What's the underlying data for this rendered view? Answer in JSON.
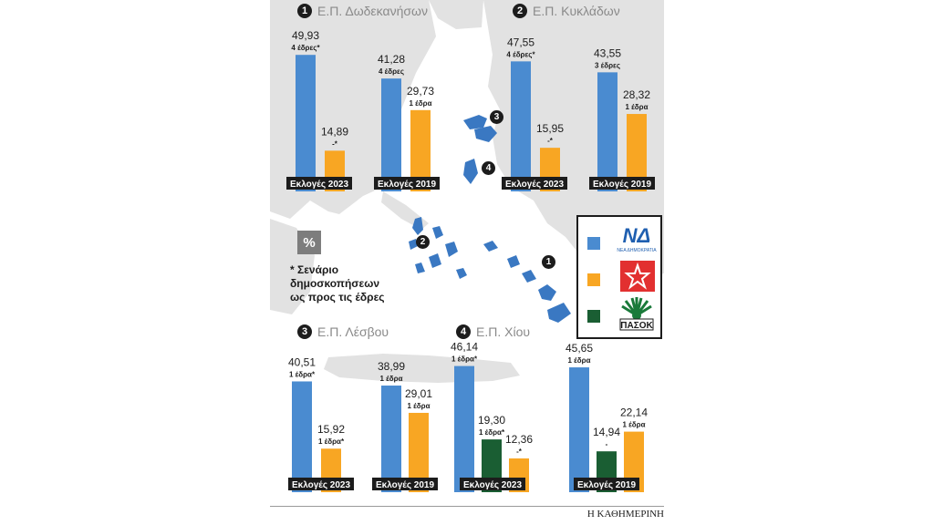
{
  "colors": {
    "nd": "#4a8bd0",
    "syriza": "#f8a623",
    "pasok": "#1a5e33",
    "map_land": "#e1e1e1",
    "islands": "#3a78c2"
  },
  "legend": {
    "nd_logo_text": "ΝΔ",
    "nd_logo_sub": "ΝΕΑ ΔΗΜΟΚΡΑΤΙΑ",
    "pasok_logo_text": "ΠΑΣΟΚ"
  },
  "percent_label": "%",
  "footnote_lines": [
    "* Σενάριο",
    "δημοσκοπήσεων",
    "ως προς τις έδρες"
  ],
  "source": "Η ΚΑΘΗΜΕΡΙΝΗ",
  "map_badges": [
    "1",
    "2",
    "3",
    "4"
  ],
  "chart_data": [
    {
      "type": "bar",
      "number": "1",
      "title": "Ε.Π. Δωδεκανήσων",
      "groups": [
        {
          "label": "Εκλογές 2023",
          "bars": [
            {
              "party": "nd",
              "value": 49.93,
              "value_text": "49,93",
              "seats": "4 έδρες*"
            },
            {
              "party": "syriza",
              "value": 14.89,
              "value_text": "14,89",
              "seats": "-*"
            }
          ]
        },
        {
          "label": "Εκλογές 2019",
          "bars": [
            {
              "party": "nd",
              "value": 41.28,
              "value_text": "41,28",
              "seats": "4 έδρες"
            },
            {
              "party": "syriza",
              "value": 29.73,
              "value_text": "29,73",
              "seats": "1 έδρα"
            }
          ]
        }
      ]
    },
    {
      "type": "bar",
      "number": "2",
      "title": "Ε.Π. Κυκλάδων",
      "groups": [
        {
          "label": "Εκλογές 2023",
          "bars": [
            {
              "party": "nd",
              "value": 47.55,
              "value_text": "47,55",
              "seats": "4 έδρες*"
            },
            {
              "party": "syriza",
              "value": 15.95,
              "value_text": "15,95",
              "seats": "-*"
            }
          ]
        },
        {
          "label": "Εκλογές 2019",
          "bars": [
            {
              "party": "nd",
              "value": 43.55,
              "value_text": "43,55",
              "seats": "3 έδρες"
            },
            {
              "party": "syriza",
              "value": 28.32,
              "value_text": "28,32",
              "seats": "1 έδρα"
            }
          ]
        }
      ]
    },
    {
      "type": "bar",
      "number": "3",
      "title": "Ε.Π. Λέσβου",
      "groups": [
        {
          "label": "Εκλογές 2023",
          "bars": [
            {
              "party": "nd",
              "value": 40.51,
              "value_text": "40,51",
              "seats": "1 έδρα*"
            },
            {
              "party": "syriza",
              "value": 15.92,
              "value_text": "15,92",
              "seats": "1 έδρα*"
            }
          ]
        },
        {
          "label": "Εκλογές 2019",
          "bars": [
            {
              "party": "nd",
              "value": 38.99,
              "value_text": "38,99",
              "seats": "1 έδρα"
            },
            {
              "party": "syriza",
              "value": 29.01,
              "value_text": "29,01",
              "seats": "1 έδρα"
            }
          ]
        }
      ]
    },
    {
      "type": "bar",
      "number": "4",
      "title": "Ε.Π. Χίου",
      "groups": [
        {
          "label": "Εκλογές 2023",
          "bars": [
            {
              "party": "nd",
              "value": 46.14,
              "value_text": "46,14",
              "seats": "1 έδρα*"
            },
            {
              "party": "pasok",
              "value": 19.3,
              "value_text": "19,30",
              "seats": "1 έδρα*"
            },
            {
              "party": "syriza",
              "value": 12.36,
              "value_text": "12,36",
              "seats": "-*"
            }
          ]
        },
        {
          "label": "Εκλογές 2019",
          "bars": [
            {
              "party": "nd",
              "value": 45.65,
              "value_text": "45,65",
              "seats": "1 έδρα"
            },
            {
              "party": "pasok",
              "value": 14.94,
              "value_text": "14,94",
              "seats": "-"
            },
            {
              "party": "syriza",
              "value": 22.14,
              "value_text": "22,14",
              "seats": "1 έδρα"
            }
          ]
        }
      ]
    }
  ]
}
